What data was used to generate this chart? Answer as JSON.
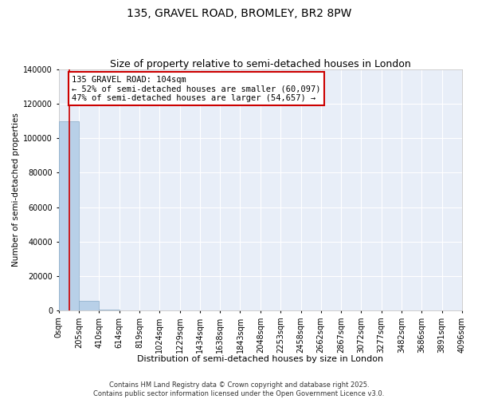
{
  "title": "135, GRAVEL ROAD, BROMLEY, BR2 8PW",
  "subtitle": "Size of property relative to semi-detached houses in London",
  "xlabel": "Distribution of semi-detached houses by size in London",
  "ylabel": "Number of semi-detached properties",
  "background_color": "#e8eef8",
  "bar_color": "#b8d0e8",
  "bar_edge_color": "#88aac8",
  "annotation_box_color": "#cc0000",
  "vline_color": "#cc0000",
  "property_size": 104,
  "annotation_text": "135 GRAVEL ROAD: 104sqm\n← 52% of semi-detached houses are smaller (60,097)\n47% of semi-detached houses are larger (54,657) →",
  "footer_text": "Contains HM Land Registry data © Crown copyright and database right 2025.\nContains public sector information licensed under the Open Government Licence v3.0.",
  "bin_edges": [
    0,
    205,
    410,
    614,
    819,
    1024,
    1229,
    1434,
    1638,
    1843,
    2048,
    2253,
    2458,
    2662,
    2867,
    3072,
    3277,
    3482,
    3686,
    3891,
    4096
  ],
  "bin_counts": [
    110000,
    5500,
    500,
    150,
    80,
    50,
    30,
    20,
    15,
    12,
    10,
    8,
    6,
    5,
    5,
    4,
    3,
    3,
    2,
    2
  ],
  "ylim": [
    0,
    140000
  ],
  "yticks": [
    0,
    20000,
    40000,
    60000,
    80000,
    100000,
    120000,
    140000
  ],
  "ytick_labels": [
    "0",
    "20000",
    "40000",
    "60000",
    "80000",
    "100000",
    "120000",
    "140000"
  ],
  "title_fontsize": 10,
  "subtitle_fontsize": 9,
  "tick_fontsize": 7,
  "ylabel_fontsize": 7.5,
  "xlabel_fontsize": 8,
  "annotation_fontsize": 7.5,
  "footer_fontsize": 6
}
